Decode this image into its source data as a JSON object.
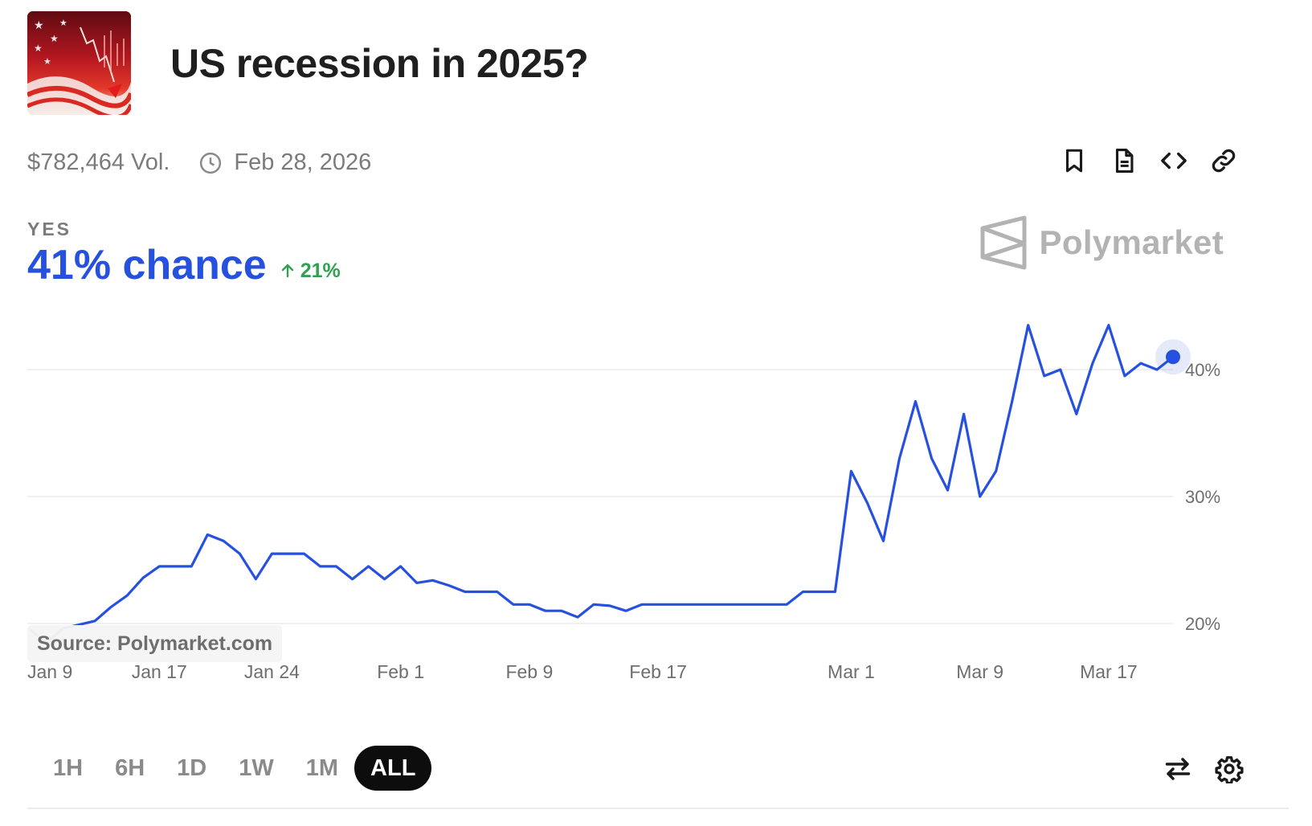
{
  "market": {
    "title": "US recession in 2025?",
    "thumbnail_icon": "us-flag-falling-chart-image",
    "volume": "$782,464 Vol.",
    "end_date": "Feb 28, 2026"
  },
  "actions": [
    {
      "name": "bookmark-icon"
    },
    {
      "name": "document-icon"
    },
    {
      "name": "embed-code-icon"
    },
    {
      "name": "link-icon"
    }
  ],
  "outcome": {
    "label": "YES",
    "chance": "41% chance",
    "change": "21%",
    "change_direction": "up"
  },
  "brand": {
    "name": "Polymarket"
  },
  "source": "Source: Polymarket.com",
  "colors": {
    "line": "#2651df",
    "positive": "#2fa24f",
    "grid": "#e6e6e6",
    "axis_text": "#6e6e6e",
    "muted": "#7b7b7b"
  },
  "chart_data": {
    "type": "line",
    "title": "",
    "xlabel": "",
    "ylabel": "",
    "x_ticks": [
      "Jan 9",
      "Jan 17",
      "Jan 24",
      "Feb 1",
      "Feb 9",
      "Feb 17",
      "Mar 1",
      "Mar 9",
      "Mar 17"
    ],
    "y_ticks": [
      "20%",
      "30%",
      "40%"
    ],
    "ylim": [
      18,
      45
    ],
    "grid": true,
    "last_point_marked": true,
    "series": [
      {
        "values": [
          [
            "Jan 9",
            19.5
          ],
          [
            "Jan 10",
            18.5
          ],
          [
            "Jan 11",
            19.6
          ],
          [
            "Jan 12",
            19.9
          ],
          [
            "Jan 13",
            20.2
          ],
          [
            "Jan 14",
            21.3
          ],
          [
            "Jan 15",
            22.2
          ],
          [
            "Jan 16",
            23.6
          ],
          [
            "Jan 17",
            24.5
          ],
          [
            "Jan 18",
            24.5
          ],
          [
            "Jan 19",
            24.5
          ],
          [
            "Jan 20",
            27.0
          ],
          [
            "Jan 21",
            26.5
          ],
          [
            "Jan 22",
            25.5
          ],
          [
            "Jan 23",
            23.5
          ],
          [
            "Jan 24",
            25.5
          ],
          [
            "Jan 25",
            25.5
          ],
          [
            "Jan 26",
            25.5
          ],
          [
            "Jan 27",
            24.5
          ],
          [
            "Jan 28",
            24.5
          ],
          [
            "Jan 29",
            23.5
          ],
          [
            "Jan 30",
            24.5
          ],
          [
            "Jan 31",
            23.5
          ],
          [
            "Feb 1",
            24.5
          ],
          [
            "Feb 2",
            23.2
          ],
          [
            "Feb 3",
            23.4
          ],
          [
            "Feb 4",
            23.0
          ],
          [
            "Feb 5",
            22.5
          ],
          [
            "Feb 6",
            22.5
          ],
          [
            "Feb 7",
            22.5
          ],
          [
            "Feb 8",
            21.5
          ],
          [
            "Feb 9",
            21.5
          ],
          [
            "Feb 10",
            21.0
          ],
          [
            "Feb 11",
            21.0
          ],
          [
            "Feb 12",
            20.5
          ],
          [
            "Feb 13",
            21.5
          ],
          [
            "Feb 14",
            21.4
          ],
          [
            "Feb 15",
            21.0
          ],
          [
            "Feb 16",
            21.5
          ],
          [
            "Feb 17",
            21.5
          ],
          [
            "Feb 18",
            21.5
          ],
          [
            "Feb 19",
            21.5
          ],
          [
            "Feb 20",
            21.5
          ],
          [
            "Feb 21",
            21.5
          ],
          [
            "Feb 22",
            21.5
          ],
          [
            "Feb 23",
            21.5
          ],
          [
            "Feb 24",
            21.5
          ],
          [
            "Feb 25",
            21.5
          ],
          [
            "Feb 26",
            22.5
          ],
          [
            "Feb 27",
            22.5
          ],
          [
            "Feb 28",
            22.5
          ],
          [
            "Mar 1",
            32.0
          ],
          [
            "Mar 2",
            29.5
          ],
          [
            "Mar 3",
            26.5
          ],
          [
            "Mar 4",
            33.0
          ],
          [
            "Mar 5",
            37.5
          ],
          [
            "Mar 6",
            33.0
          ],
          [
            "Mar 7",
            30.5
          ],
          [
            "Mar 8",
            36.5
          ],
          [
            "Mar 9",
            30.0
          ],
          [
            "Mar 10",
            32.0
          ],
          [
            "Mar 11",
            37.5
          ],
          [
            "Mar 12",
            43.5
          ],
          [
            "Mar 13",
            39.5
          ],
          [
            "Mar 14",
            40.0
          ],
          [
            "Mar 15",
            36.5
          ],
          [
            "Mar 16",
            40.5
          ],
          [
            "Mar 17",
            43.5
          ],
          [
            "Mar 18",
            39.5
          ],
          [
            "Mar 19",
            40.5
          ],
          [
            "Mar 20",
            40.0
          ],
          [
            "Mar 21",
            41.0
          ]
        ]
      }
    ]
  },
  "time_ranges": [
    "1H",
    "6H",
    "1D",
    "1W",
    "1M",
    "ALL"
  ],
  "active_range": "ALL",
  "tools": [
    {
      "name": "swap-arrows-icon"
    },
    {
      "name": "gear-icon"
    }
  ]
}
